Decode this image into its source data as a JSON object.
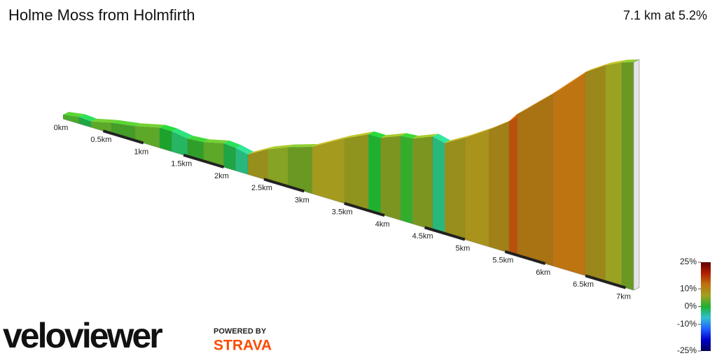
{
  "chart_data": {
    "type": "profile3d",
    "title": "Holme Moss from Holmfirth",
    "subtitle": "7.1 km at 5.2%",
    "x": [
      0,
      0.2,
      0.35,
      0.6,
      0.9,
      1.2,
      1.35,
      1.55,
      1.75,
      2.0,
      2.15,
      2.3,
      2.55,
      2.8,
      3.1,
      3.5,
      3.8,
      3.95,
      4.2,
      4.35,
      4.6,
      4.75,
      5.0,
      5.3,
      5.55,
      5.65,
      6.1,
      6.5,
      6.75,
      6.95
    ],
    "values": [
      2,
      -1,
      3,
      2,
      3,
      0,
      -2,
      1,
      3,
      -1,
      -3,
      7,
      5,
      4,
      7,
      6,
      0,
      5,
      1,
      5,
      -3,
      7,
      8,
      9,
      15,
      11,
      12,
      8,
      6,
      4
    ],
    "xlim": [
      0,
      7.1
    ],
    "xticks": [
      {
        "value": 0,
        "label": "0km"
      },
      {
        "value": 0.5,
        "label": "0.5km"
      },
      {
        "value": 1,
        "label": "1km"
      },
      {
        "value": 1.5,
        "label": "1.5km"
      },
      {
        "value": 2,
        "label": "2km"
      },
      {
        "value": 2.5,
        "label": "2.5km"
      },
      {
        "value": 3,
        "label": "3km"
      },
      {
        "value": 3.5,
        "label": "3.5km"
      },
      {
        "value": 4,
        "label": "4km"
      },
      {
        "value": 4.5,
        "label": "4.5km"
      },
      {
        "value": 5,
        "label": "5km"
      },
      {
        "value": 5.5,
        "label": "5.5km"
      },
      {
        "value": 6,
        "label": "6km"
      },
      {
        "value": 6.5,
        "label": "6.5km"
      },
      {
        "value": 7,
        "label": "7km"
      }
    ],
    "clim": [
      -25,
      25
    ],
    "cticks": [
      {
        "value": 25,
        "label": "25%"
      },
      {
        "value": 10,
        "label": "10%"
      },
      {
        "value": 0,
        "label": "0%"
      },
      {
        "value": -10,
        "label": "-10%"
      },
      {
        "value": -25,
        "label": "-25%"
      }
    ],
    "colorscale": [
      "#00005a",
      "#0000c8",
      "#2060ff",
      "#30c0d0",
      "#20b030",
      "#a0a020",
      "#c07010",
      "#b02000",
      "#600000"
    ]
  },
  "branding": {
    "logo": "veloviewer",
    "powered": "POWERED BY",
    "partner": "STRAVA"
  }
}
